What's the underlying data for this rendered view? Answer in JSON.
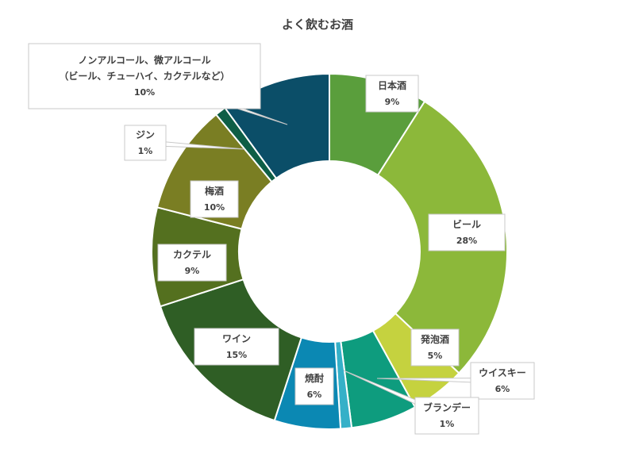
{
  "chart_data": {
    "type": "pie",
    "title": "よく飲むお酒",
    "donut": true,
    "start": "12 o'clock, clockwise",
    "slices": [
      {
        "label": "日本酒",
        "value": 9,
        "value_label": "9%",
        "color": "#5a9e3c"
      },
      {
        "label": "ビール",
        "value": 28,
        "value_label": "28%",
        "color": "#8cb83a"
      },
      {
        "label": "発泡酒",
        "value": 5,
        "value_label": "5%",
        "color": "#c5d23f"
      },
      {
        "label": "ウイスキー",
        "value": 6,
        "value_label": "6%",
        "color": "#0e9c7e"
      },
      {
        "label": "ブランデー",
        "value": 1,
        "value_label": "1%",
        "color": "#35b0c8"
      },
      {
        "label": "焼酎",
        "value": 6,
        "value_label": "6%",
        "color": "#0b88b3"
      },
      {
        "label": "ワイン",
        "value": 15,
        "value_label": "15%",
        "color": "#2f5e25"
      },
      {
        "label": "カクテル",
        "value": 9,
        "value_label": "9%",
        "color": "#54701f"
      },
      {
        "label": "梅酒",
        "value": 10,
        "value_label": "10%",
        "color": "#7a7e23"
      },
      {
        "label": "ジン",
        "value": 1,
        "value_label": "1%",
        "color": "#0e5e46"
      },
      {
        "label": [
          "ノンアルコール、微アルコール",
          "（ビール、チューハイ、カクテルなど）"
        ],
        "value": 10,
        "value_label": "10%",
        "color": "#0b4e68"
      }
    ]
  }
}
